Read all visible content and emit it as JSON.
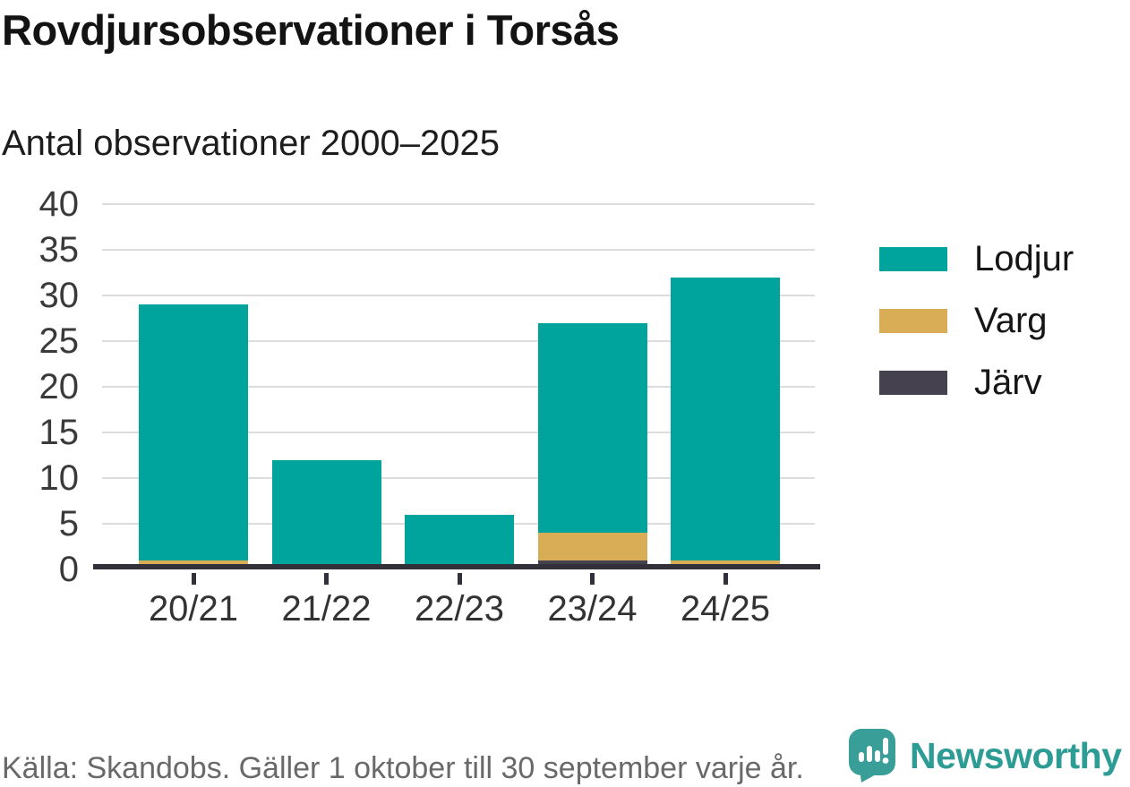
{
  "chart_data": {
    "type": "bar",
    "stacked": true,
    "title": "Rovdjursobservationer i Torsås",
    "subtitle": "Antal observationer 2000–2025",
    "categories": [
      "20/21",
      "21/22",
      "22/23",
      "23/24",
      "24/25"
    ],
    "series": [
      {
        "name": "Lodjur",
        "color": "#00a49c",
        "values": [
          28,
          12,
          6,
          23,
          31
        ]
      },
      {
        "name": "Varg",
        "color": "#d9ad56",
        "values": [
          1,
          0,
          0,
          3,
          1
        ]
      },
      {
        "name": "Järv",
        "color": "#46414f",
        "values": [
          0,
          0,
          0,
          1,
          0
        ]
      }
    ],
    "stack_order_bottom_to_top": [
      "Järv",
      "Varg",
      "Lodjur"
    ],
    "totals": [
      29,
      12,
      6,
      27,
      32
    ],
    "ylim": [
      0,
      40
    ],
    "yticks": [
      0,
      5,
      10,
      15,
      20,
      25,
      30,
      35,
      40
    ],
    "grid": true,
    "legend_position": "right",
    "source": "Källa: Skandobs. Gäller 1 oktober till 30 september varje år."
  },
  "branding": {
    "logo_text": "Newsworthy",
    "logo_color": "#2d9c95",
    "logo_icon": "speech-bubble-bar-chart-exclamation",
    "logo_icon_color": "#399e98"
  },
  "colors": {
    "axis_line": "#32313a",
    "grid_line": "#dcdcdc",
    "axis_text": "#3a3a3a",
    "title_text": "#131313",
    "footer_text": "#696969"
  }
}
